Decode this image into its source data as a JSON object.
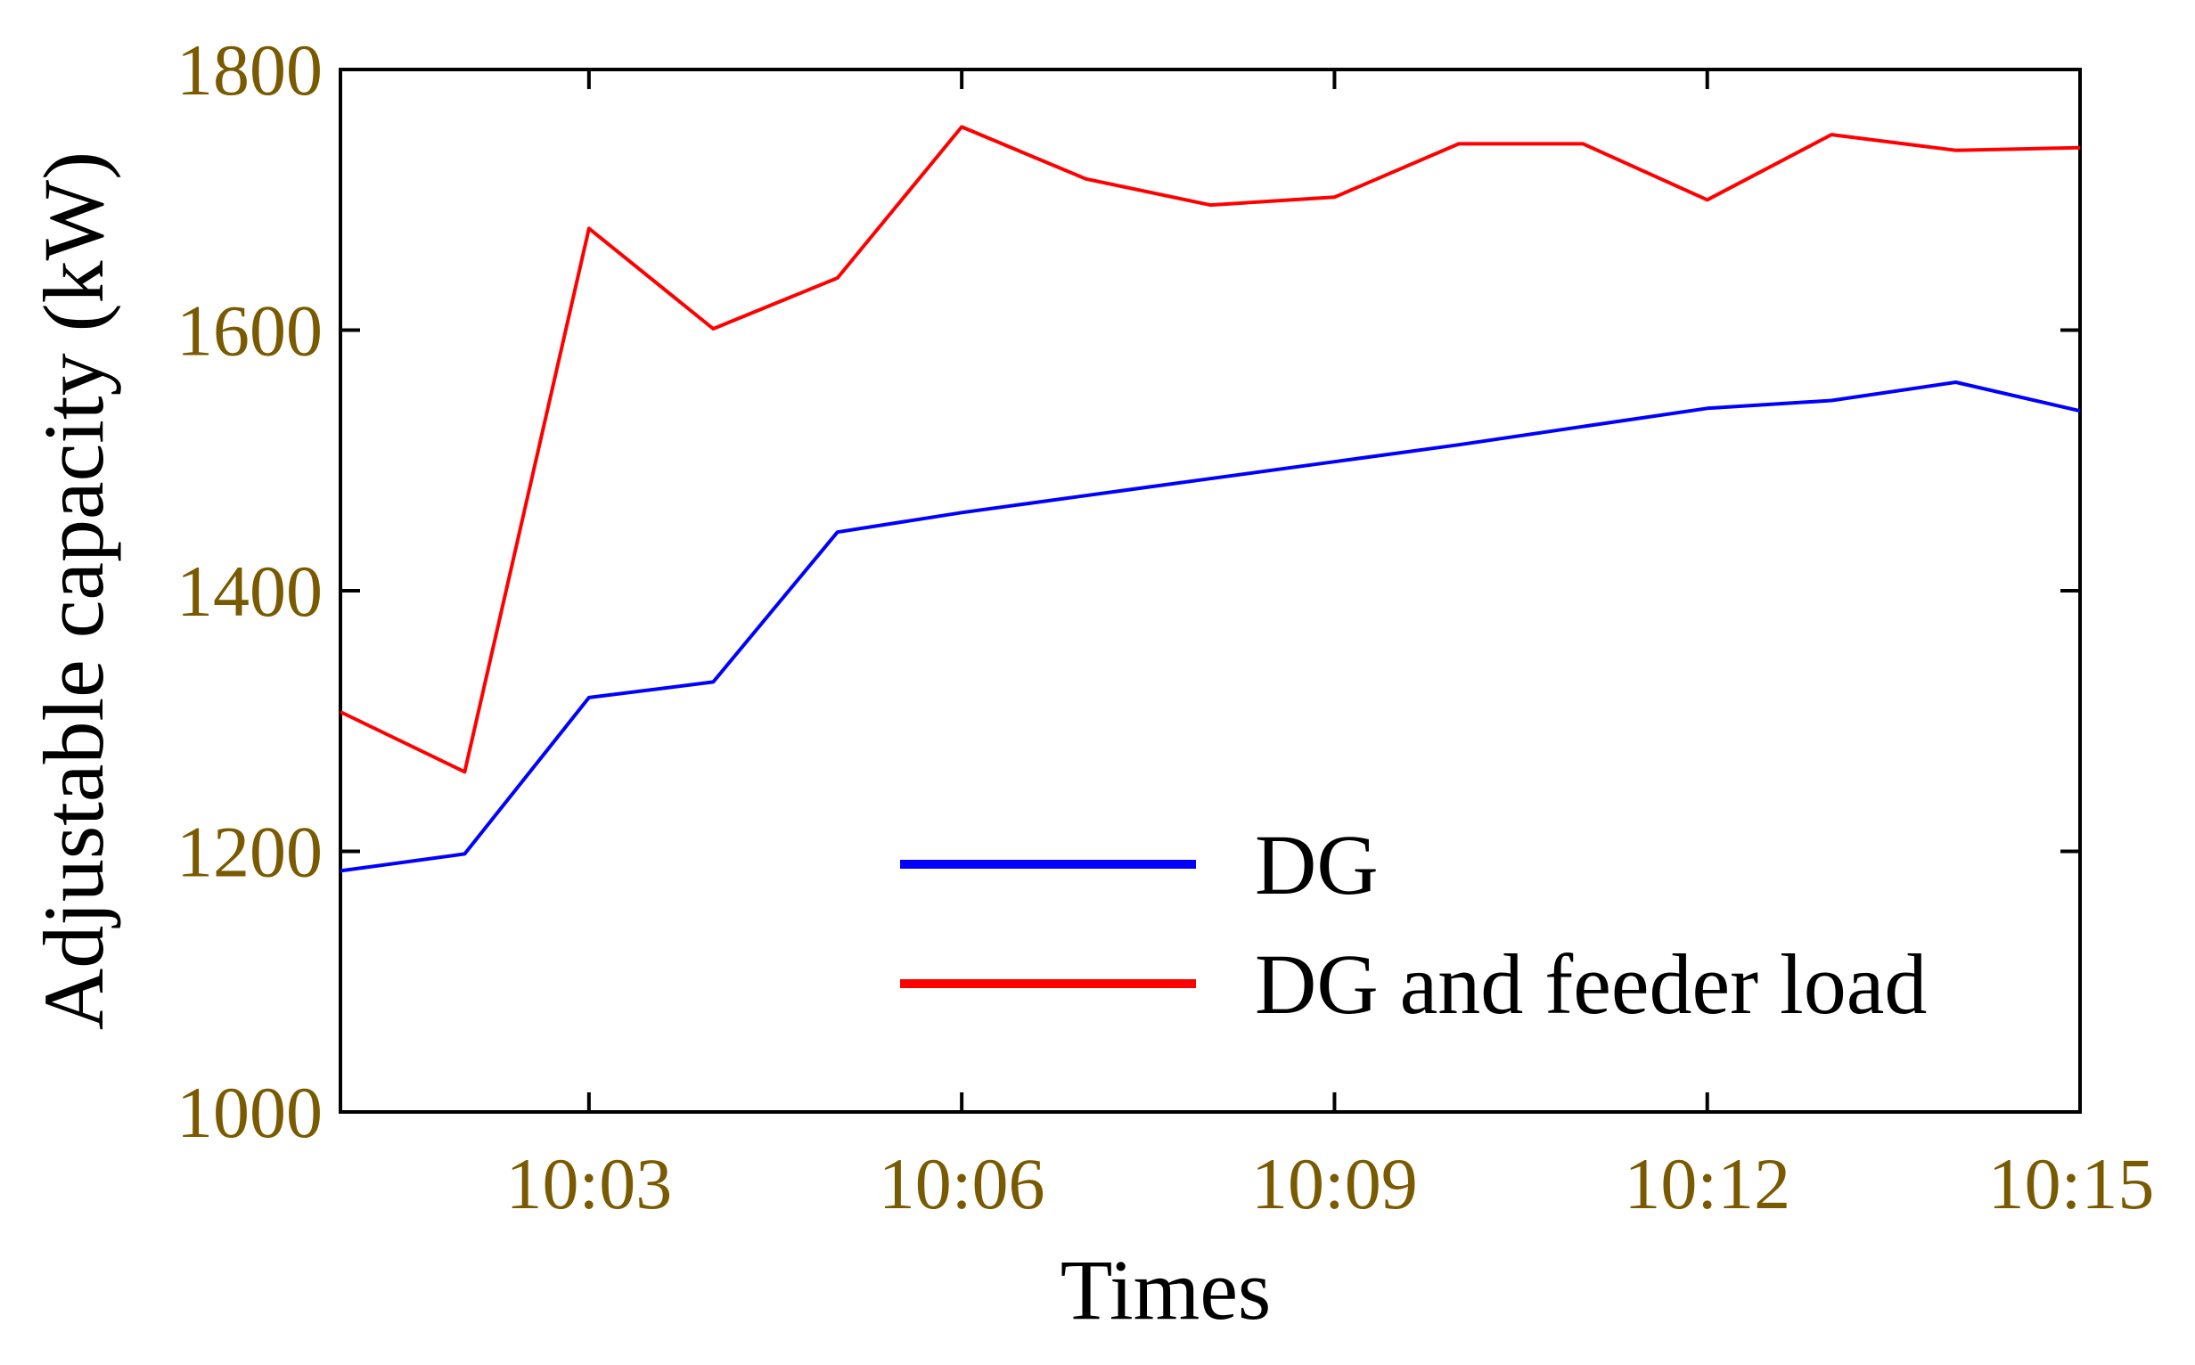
{
  "chart_data": {
    "type": "line",
    "title": "",
    "xlabel": "Times",
    "ylabel": "Adjustable capacity (kW)",
    "x": [
      "10:01",
      "10:02",
      "10:03",
      "10:04",
      "10:05",
      "10:06",
      "10:07",
      "10:08",
      "10:09",
      "10:10",
      "10:11",
      "10:12",
      "10:13",
      "10:14",
      "10:15"
    ],
    "x_ticks": [
      "10:03",
      "10:06",
      "10:09",
      "10:12",
      "10:15"
    ],
    "ylim": [
      1000,
      1800
    ],
    "y_ticks": [
      1000,
      1200,
      1400,
      1600,
      1800
    ],
    "grid": false,
    "legend_position": "bottom-right",
    "series": [
      {
        "name": "DG",
        "color": "#0000ff",
        "values": [
          1185,
          1198,
          1318,
          1330,
          1445,
          1460,
          1473,
          1486,
          1499,
          1512,
          1526,
          1540,
          1546,
          1560,
          1538
        ]
      },
      {
        "name": "DG and feeder load",
        "color": "#ff0000",
        "values": [
          1307,
          1261,
          1678,
          1601,
          1640,
          1756,
          1716,
          1696,
          1702,
          1743,
          1743,
          1700,
          1750,
          1738,
          1740
        ]
      }
    ]
  }
}
